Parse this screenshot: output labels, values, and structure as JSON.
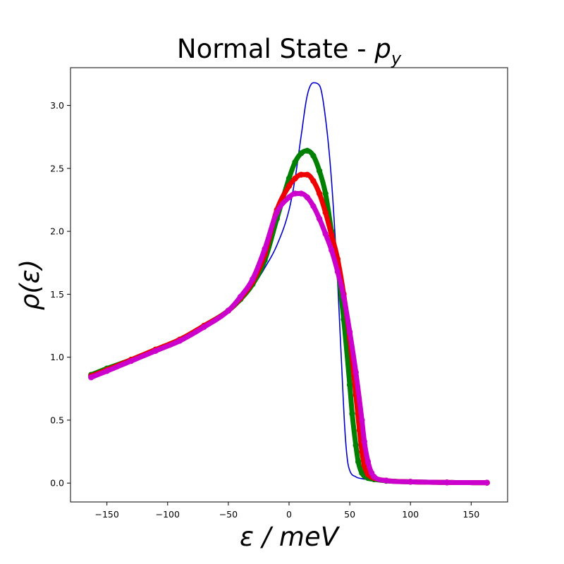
{
  "chart_data": {
    "type": "line",
    "title_main": "Normal State - ",
    "title_symbol": "p",
    "title_subscript": "y",
    "xlabel": "ε / meV",
    "ylabel": "ρ(ε)",
    "xlim": [
      -180,
      180
    ],
    "ylim": [
      -0.15,
      3.3
    ],
    "xticks": [
      -150,
      -100,
      -50,
      0,
      50,
      100,
      150
    ],
    "xtick_labels": [
      "−150",
      "−100",
      "−50",
      "0",
      "50",
      "100",
      "150"
    ],
    "yticks": [
      0.0,
      0.5,
      1.0,
      1.5,
      2.0,
      2.5,
      3.0
    ],
    "ytick_labels": [
      "0.0",
      "0.5",
      "1.0",
      "1.5",
      "2.0",
      "2.5",
      "3.0"
    ],
    "series": [
      {
        "name": "blue",
        "color": "#0000cc",
        "style": "thin-line",
        "x": [
          -163,
          -150,
          -130,
          -110,
          -90,
          -70,
          -50,
          -40,
          -30,
          -20,
          -10,
          0,
          5,
          10,
          15,
          20,
          25,
          30,
          35,
          40,
          43,
          46,
          48,
          50,
          55,
          60,
          70,
          80,
          100,
          130,
          163
        ],
        "y": [
          0.86,
          0.91,
          0.98,
          1.06,
          1.14,
          1.25,
          1.37,
          1.46,
          1.56,
          1.71,
          1.89,
          2.17,
          2.42,
          2.76,
          3.08,
          3.18,
          3.16,
          2.9,
          2.4,
          1.6,
          1.0,
          0.42,
          0.19,
          0.1,
          0.05,
          0.035,
          0.025,
          0.018,
          0.01,
          0.005,
          0.003
        ]
      },
      {
        "name": "green",
        "color": "#008000",
        "style": "thick-markers",
        "x": [
          -163,
          -150,
          -130,
          -110,
          -90,
          -70,
          -50,
          -40,
          -30,
          -20,
          -10,
          0,
          5,
          10,
          15,
          20,
          25,
          30,
          35,
          40,
          45,
          50,
          52,
          55,
          57,
          60,
          65,
          70,
          80,
          100,
          130,
          163
        ],
        "y": [
          0.86,
          0.91,
          0.98,
          1.06,
          1.14,
          1.25,
          1.37,
          1.46,
          1.58,
          1.77,
          2.1,
          2.42,
          2.55,
          2.62,
          2.64,
          2.6,
          2.48,
          2.3,
          2.0,
          1.72,
          1.3,
          0.78,
          0.55,
          0.3,
          0.17,
          0.08,
          0.04,
          0.03,
          0.018,
          0.01,
          0.005,
          0.003
        ]
      },
      {
        "name": "red",
        "color": "#ee0000",
        "style": "thick-markers",
        "x": [
          -163,
          -150,
          -130,
          -110,
          -90,
          -70,
          -50,
          -40,
          -30,
          -20,
          -10,
          0,
          5,
          10,
          15,
          20,
          25,
          30,
          35,
          40,
          45,
          50,
          55,
          58,
          60,
          62,
          65,
          70,
          80,
          100,
          130,
          163
        ],
        "y": [
          0.85,
          0.9,
          0.98,
          1.06,
          1.14,
          1.25,
          1.37,
          1.47,
          1.6,
          1.82,
          2.17,
          2.36,
          2.42,
          2.45,
          2.45,
          2.4,
          2.3,
          2.15,
          1.97,
          1.78,
          1.5,
          1.15,
          0.7,
          0.42,
          0.25,
          0.14,
          0.07,
          0.04,
          0.02,
          0.01,
          0.005,
          0.003
        ]
      },
      {
        "name": "magenta",
        "color": "#cc00cc",
        "style": "thick-markers",
        "x": [
          -163,
          -150,
          -130,
          -110,
          -90,
          -70,
          -50,
          -40,
          -30,
          -20,
          -10,
          0,
          5,
          10,
          15,
          20,
          25,
          30,
          35,
          40,
          45,
          50,
          55,
          60,
          62,
          65,
          68,
          70,
          80,
          100,
          130,
          163
        ],
        "y": [
          0.84,
          0.89,
          0.97,
          1.05,
          1.13,
          1.24,
          1.37,
          1.48,
          1.62,
          1.86,
          2.15,
          2.27,
          2.3,
          2.3,
          2.27,
          2.2,
          2.1,
          1.98,
          1.85,
          1.68,
          1.48,
          1.2,
          0.88,
          0.5,
          0.33,
          0.17,
          0.08,
          0.05,
          0.02,
          0.01,
          0.005,
          0.003
        ]
      }
    ]
  }
}
